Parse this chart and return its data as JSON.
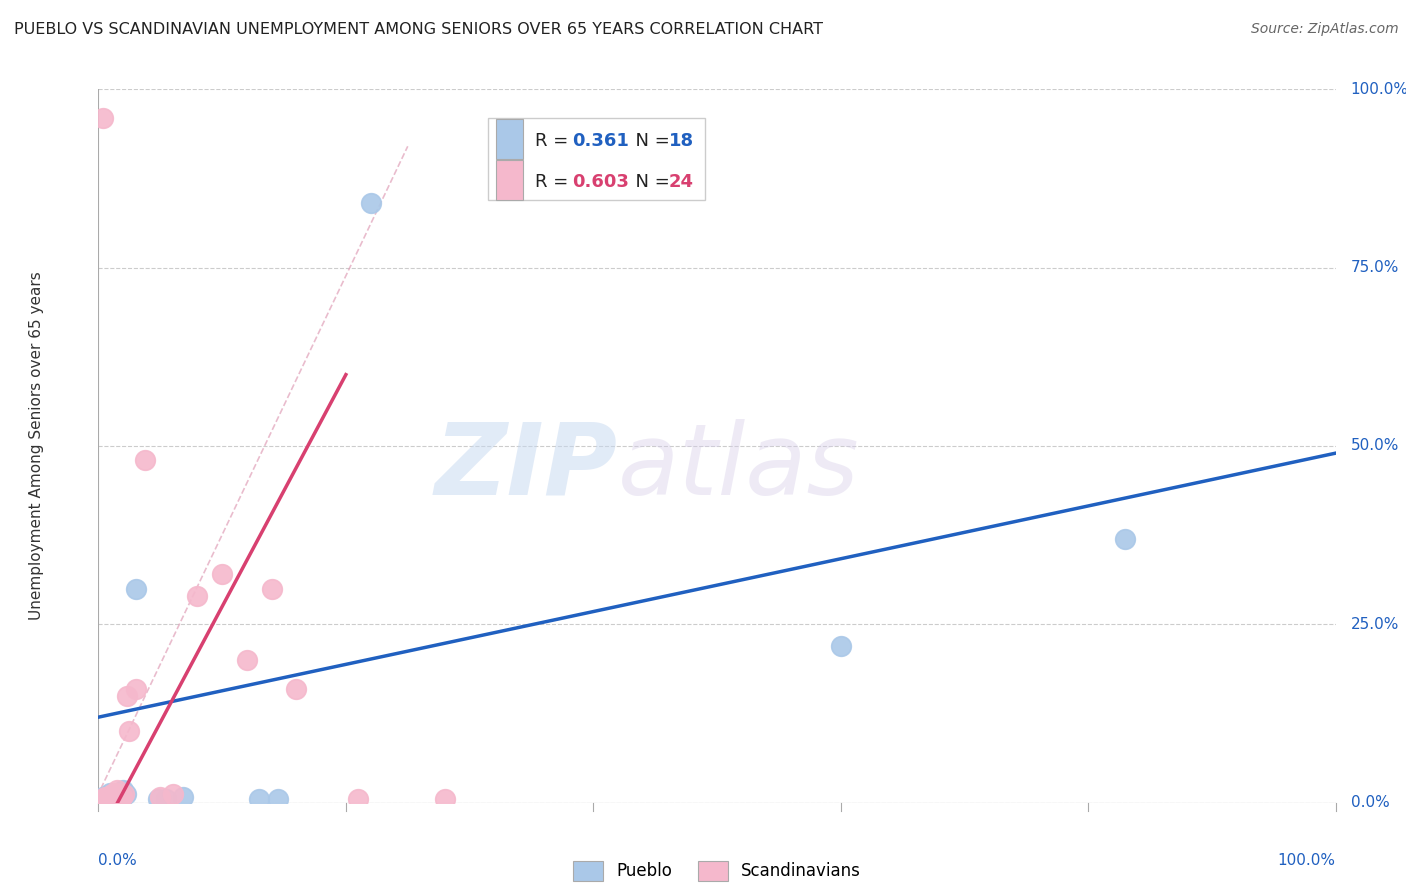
{
  "title": "PUEBLO VS SCANDINAVIAN UNEMPLOYMENT AMONG SENIORS OVER 65 YEARS CORRELATION CHART",
  "source": "Source: ZipAtlas.com",
  "ylabel": "Unemployment Among Seniors over 65 years",
  "xlim": [
    0,
    1
  ],
  "ylim": [
    0,
    1
  ],
  "ytick_labels": [
    "0.0%",
    "25.0%",
    "50.0%",
    "75.0%",
    "100.0%"
  ],
  "ytick_values": [
    0.0,
    0.25,
    0.5,
    0.75,
    1.0
  ],
  "pueblo_R": "0.361",
  "pueblo_N": "18",
  "scand_R": "0.603",
  "scand_N": "24",
  "pueblo_color": "#aac8e8",
  "scand_color": "#f5b8cc",
  "pueblo_line_color": "#2060c0",
  "scand_line_color": "#d84070",
  "pueblo_scatter": [
    [
      0.004,
      0.008
    ],
    [
      0.007,
      0.01
    ],
    [
      0.009,
      0.014
    ],
    [
      0.011,
      0.008
    ],
    [
      0.013,
      0.01
    ],
    [
      0.016,
      0.008
    ],
    [
      0.018,
      0.006
    ],
    [
      0.02,
      0.018
    ],
    [
      0.022,
      0.012
    ],
    [
      0.03,
      0.3
    ],
    [
      0.048,
      0.006
    ],
    [
      0.055,
      0.006
    ],
    [
      0.068,
      0.008
    ],
    [
      0.13,
      0.006
    ],
    [
      0.145,
      0.006
    ],
    [
      0.22,
      0.84
    ],
    [
      0.6,
      0.22
    ],
    [
      0.83,
      0.37
    ]
  ],
  "scand_scatter": [
    [
      0.003,
      0.005
    ],
    [
      0.005,
      0.008
    ],
    [
      0.007,
      0.006
    ],
    [
      0.009,
      0.01
    ],
    [
      0.011,
      0.012
    ],
    [
      0.013,
      0.014
    ],
    [
      0.015,
      0.018
    ],
    [
      0.017,
      0.008
    ],
    [
      0.019,
      0.008
    ],
    [
      0.021,
      0.012
    ],
    [
      0.023,
      0.15
    ],
    [
      0.025,
      0.1
    ],
    [
      0.03,
      0.16
    ],
    [
      0.038,
      0.48
    ],
    [
      0.05,
      0.008
    ],
    [
      0.06,
      0.012
    ],
    [
      0.08,
      0.29
    ],
    [
      0.1,
      0.32
    ],
    [
      0.12,
      0.2
    ],
    [
      0.14,
      0.3
    ],
    [
      0.16,
      0.16
    ],
    [
      0.21,
      0.005
    ],
    [
      0.28,
      0.005
    ],
    [
      0.004,
      0.96
    ]
  ],
  "background_color": "#ffffff",
  "grid_color": "#cccccc"
}
